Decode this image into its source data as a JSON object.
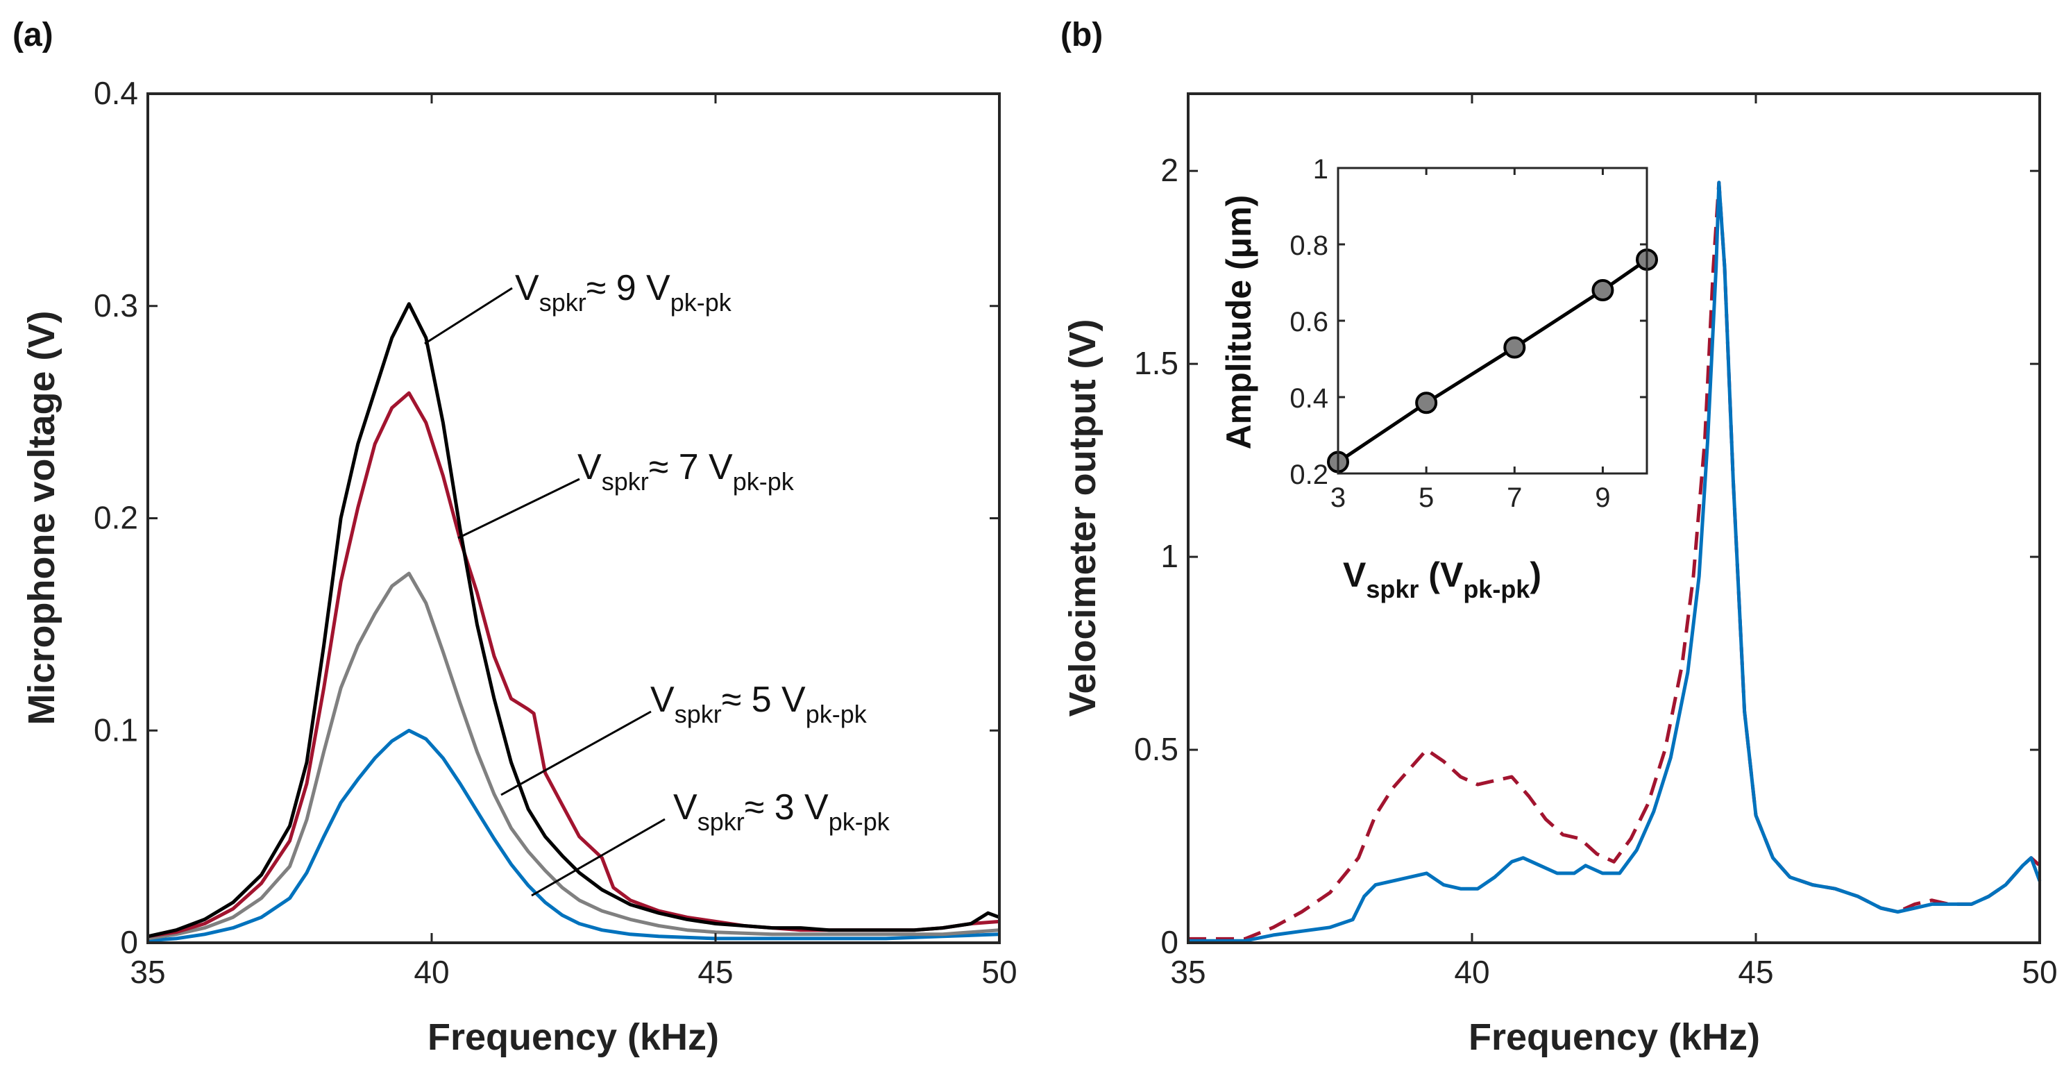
{
  "figure": {
    "panel_a_label": "(a)",
    "panel_b_label": "(b)"
  },
  "chart_data": [
    {
      "id": "a",
      "type": "line",
      "title": "",
      "xlabel": "Frequency (kHz)",
      "ylabel": "Microphone voltage (V)",
      "xlim": [
        35,
        50
      ],
      "ylim": [
        0,
        0.4
      ],
      "xticks": [
        "35",
        "40",
        "45",
        "50"
      ],
      "yticks": [
        "0",
        "0.1",
        "0.2",
        "0.3",
        "0.4"
      ],
      "annotations": [
        {
          "base": "V",
          "sub1": "spkr",
          "mid": "≈ 9 V",
          "sub2": "pk-pk",
          "points_to_series": "9 Vpk-pk"
        },
        {
          "base": "V",
          "sub1": "spkr",
          "mid": "≈ 7 V",
          "sub2": "pk-pk",
          "points_to_series": "7 Vpk-pk"
        },
        {
          "base": "V",
          "sub1": "spkr",
          "mid": "≈ 5 V",
          "sub2": "pk-pk",
          "points_to_series": "5 Vpk-pk"
        },
        {
          "base": "V",
          "sub1": "spkr",
          "mid": "≈ 3 V",
          "sub2": "pk-pk",
          "points_to_series": "3 Vpk-pk"
        }
      ],
      "series": [
        {
          "name": "9 Vpk-pk",
          "color": "#000000",
          "x": [
            35,
            35.5,
            36,
            36.5,
            37,
            37.5,
            37.8,
            38.1,
            38.4,
            38.7,
            39.0,
            39.3,
            39.6,
            39.9,
            40.2,
            40.5,
            40.8,
            41.1,
            41.4,
            41.7,
            42.0,
            42.3,
            42.6,
            43.0,
            43.5,
            44,
            44.5,
            45,
            45.5,
            46,
            46.5,
            47,
            47.5,
            48,
            48.5,
            49,
            49.5,
            49.8,
            50
          ],
          "y": [
            0.003,
            0.006,
            0.011,
            0.019,
            0.032,
            0.055,
            0.085,
            0.14,
            0.2,
            0.235,
            0.26,
            0.285,
            0.301,
            0.285,
            0.245,
            0.195,
            0.15,
            0.115,
            0.085,
            0.063,
            0.05,
            0.041,
            0.033,
            0.025,
            0.018,
            0.014,
            0.011,
            0.009,
            0.008,
            0.007,
            0.007,
            0.006,
            0.006,
            0.006,
            0.006,
            0.007,
            0.009,
            0.014,
            0.012
          ]
        },
        {
          "name": "7 Vpk-pk",
          "color": "#A2142F",
          "x": [
            35,
            35.5,
            36,
            36.5,
            37,
            37.5,
            37.8,
            38.1,
            38.4,
            38.7,
            39.0,
            39.3,
            39.6,
            39.9,
            40.2,
            40.5,
            40.8,
            41.1,
            41.4,
            41.7,
            41.8,
            42.0,
            42.3,
            42.6,
            43.0,
            43.2,
            43.5,
            44,
            44.5,
            45,
            45.5,
            46,
            46.5,
            47,
            47.5,
            48,
            48.5,
            49,
            49.5,
            50
          ],
          "y": [
            0.003,
            0.005,
            0.009,
            0.016,
            0.028,
            0.048,
            0.075,
            0.12,
            0.17,
            0.205,
            0.235,
            0.252,
            0.259,
            0.245,
            0.22,
            0.19,
            0.165,
            0.135,
            0.115,
            0.11,
            0.108,
            0.08,
            0.065,
            0.05,
            0.04,
            0.026,
            0.02,
            0.015,
            0.012,
            0.01,
            0.008,
            0.007,
            0.006,
            0.006,
            0.006,
            0.006,
            0.006,
            0.007,
            0.009,
            0.01
          ]
        },
        {
          "name": "5 Vpk-pk",
          "color": "#808080",
          "x": [
            35,
            35.5,
            36,
            36.5,
            37,
            37.5,
            37.8,
            38.1,
            38.4,
            38.7,
            39.0,
            39.3,
            39.6,
            39.9,
            40.2,
            40.5,
            40.8,
            41.1,
            41.4,
            41.7,
            42.0,
            42.3,
            42.6,
            43.0,
            43.5,
            44,
            44.5,
            45,
            46,
            47,
            48,
            49,
            49.5,
            50
          ],
          "y": [
            0.002,
            0.004,
            0.007,
            0.012,
            0.021,
            0.036,
            0.058,
            0.09,
            0.12,
            0.14,
            0.155,
            0.168,
            0.174,
            0.16,
            0.137,
            0.113,
            0.09,
            0.07,
            0.054,
            0.043,
            0.034,
            0.026,
            0.02,
            0.015,
            0.011,
            0.008,
            0.006,
            0.005,
            0.004,
            0.004,
            0.004,
            0.004,
            0.005,
            0.006
          ]
        },
        {
          "name": "3 Vpk-pk",
          "color": "#0072BD",
          "x": [
            35,
            35.5,
            36,
            36.5,
            37,
            37.5,
            37.8,
            38.1,
            38.4,
            38.7,
            39.0,
            39.3,
            39.6,
            39.9,
            40.2,
            40.5,
            40.8,
            41.1,
            41.4,
            41.7,
            42.0,
            42.3,
            42.6,
            43.0,
            43.5,
            44,
            45,
            46,
            47,
            48,
            49,
            50
          ],
          "y": [
            0.001,
            0.002,
            0.004,
            0.007,
            0.012,
            0.021,
            0.033,
            0.05,
            0.066,
            0.077,
            0.087,
            0.095,
            0.1,
            0.096,
            0.087,
            0.075,
            0.062,
            0.049,
            0.037,
            0.027,
            0.019,
            0.013,
            0.009,
            0.006,
            0.004,
            0.003,
            0.002,
            0.002,
            0.002,
            0.002,
            0.003,
            0.004
          ]
        }
      ]
    },
    {
      "id": "b",
      "type": "line",
      "title": "",
      "xlabel": "Frequency (kHz)",
      "ylabel": "Velocimeter output (V)",
      "xlim": [
        35,
        50
      ],
      "ylim": [
        0,
        2.2
      ],
      "xticks": [
        "35",
        "40",
        "45",
        "50"
      ],
      "yticks": [
        "0",
        "0.5",
        "1",
        "1.5",
        "2"
      ],
      "series": [
        {
          "name": "dashed",
          "color": "#A2142F",
          "style": "dashed",
          "x": [
            35,
            35.5,
            36,
            36.5,
            37,
            37.5,
            38,
            38.3,
            38.6,
            38.9,
            39.2,
            39.5,
            39.8,
            40.1,
            40.4,
            40.7,
            41.0,
            41.3,
            41.6,
            41.9,
            42.2,
            42.5,
            42.8,
            43.1,
            43.4,
            43.7,
            43.9,
            44.1,
            44.25,
            44.35,
            44.45,
            44.6,
            44.8,
            45.0,
            45.3,
            45.6,
            46.0,
            46.4,
            46.8,
            47.2,
            47.5,
            47.8,
            48.1,
            48.4,
            48.8,
            49.1,
            49.4,
            49.7,
            49.85,
            50
          ],
          "y": [
            0.01,
            0.01,
            0.01,
            0.04,
            0.08,
            0.13,
            0.22,
            0.33,
            0.4,
            0.45,
            0.5,
            0.47,
            0.43,
            0.41,
            0.42,
            0.43,
            0.38,
            0.32,
            0.28,
            0.27,
            0.23,
            0.21,
            0.27,
            0.36,
            0.5,
            0.72,
            0.95,
            1.3,
            1.75,
            1.97,
            1.75,
            1.2,
            0.6,
            0.33,
            0.22,
            0.17,
            0.15,
            0.14,
            0.12,
            0.09,
            0.08,
            0.1,
            0.11,
            0.1,
            0.1,
            0.12,
            0.15,
            0.2,
            0.22,
            0.2
          ]
        },
        {
          "name": "solid",
          "color": "#0072BD",
          "style": "solid",
          "x": [
            35,
            35.5,
            36,
            36.5,
            37,
            37.5,
            37.9,
            38.1,
            38.3,
            38.6,
            38.9,
            39.2,
            39.5,
            39.8,
            40.1,
            40.4,
            40.7,
            40.9,
            41.2,
            41.5,
            41.8,
            42.0,
            42.3,
            42.6,
            42.9,
            43.2,
            43.5,
            43.8,
            44.0,
            44.15,
            44.3,
            44.35,
            44.45,
            44.6,
            44.8,
            45.0,
            45.3,
            45.6,
            46.0,
            46.4,
            46.8,
            47.2,
            47.5,
            47.8,
            48.1,
            48.4,
            48.8,
            49.1,
            49.4,
            49.7,
            49.85,
            50
          ],
          "y": [
            0.005,
            0.005,
            0.005,
            0.02,
            0.03,
            0.04,
            0.06,
            0.12,
            0.15,
            0.16,
            0.17,
            0.18,
            0.15,
            0.14,
            0.14,
            0.17,
            0.21,
            0.22,
            0.2,
            0.18,
            0.18,
            0.2,
            0.18,
            0.18,
            0.24,
            0.34,
            0.48,
            0.7,
            0.95,
            1.3,
            1.75,
            1.97,
            1.75,
            1.2,
            0.6,
            0.33,
            0.22,
            0.17,
            0.15,
            0.14,
            0.12,
            0.09,
            0.08,
            0.09,
            0.1,
            0.1,
            0.1,
            0.12,
            0.15,
            0.2,
            0.22,
            0.16
          ]
        }
      ],
      "inset": {
        "type": "line",
        "xlabel": {
          "base": "V",
          "sub1": "spkr",
          "mid": "  (V",
          "sub2": "pk-pk",
          "tail": ")"
        },
        "ylabel": "Amplitude (μm)",
        "xlim": [
          3,
          10
        ],
        "ylim": [
          0.2,
          1
        ],
        "xticks": [
          "3",
          "5",
          "7",
          "9"
        ],
        "yticks": [
          "0.2",
          "0.4",
          "0.6",
          "0.8",
          "1"
        ],
        "x": [
          3,
          5,
          7,
          9,
          10
        ],
        "y": [
          0.23,
          0.385,
          0.53,
          0.68,
          0.76
        ],
        "line_color": "#000000",
        "marker_color": "#808080"
      }
    }
  ]
}
